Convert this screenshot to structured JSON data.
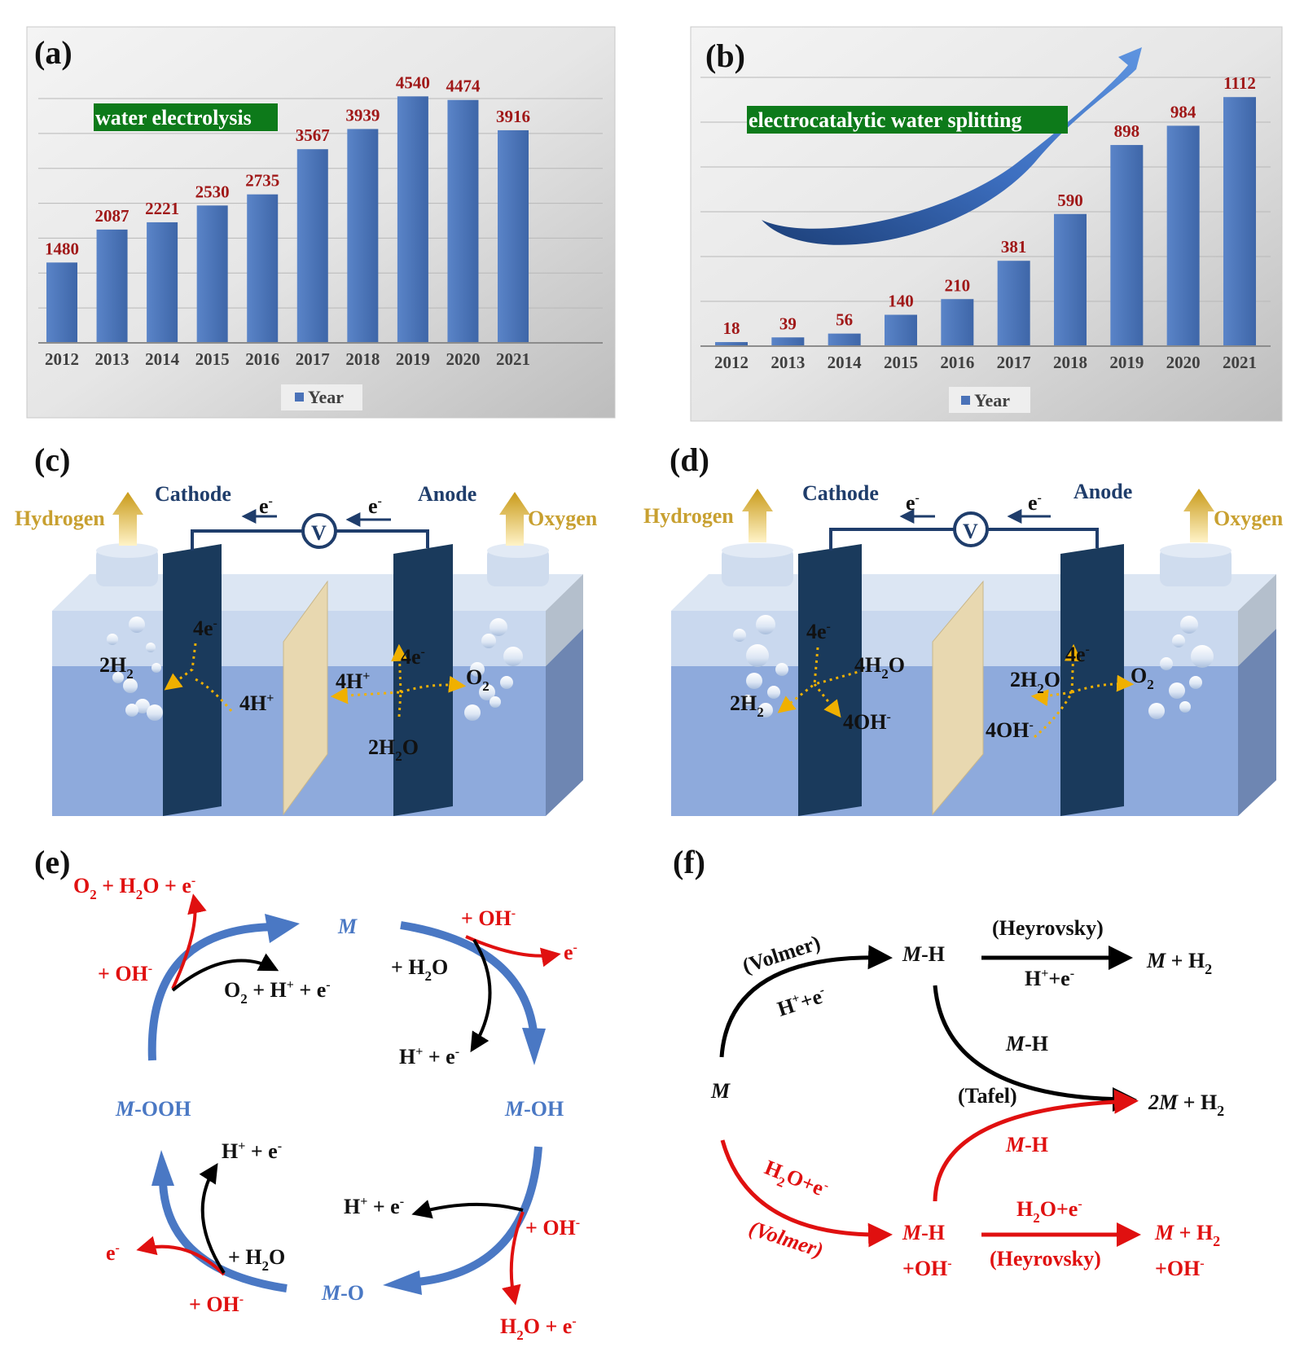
{
  "panels": {
    "a": "(a)",
    "b": "(b)",
    "c": "(c)",
    "d": "(d)",
    "e": "(e)",
    "f": "(f)"
  },
  "chart_data": [
    {
      "type": "bar",
      "title": "water electrolysis",
      "categories": [
        "2012",
        "2013",
        "2014",
        "2015",
        "2016",
        "2017",
        "2018",
        "2019",
        "2020",
        "2021"
      ],
      "series": [
        {
          "name": "Year",
          "values": [
            1480,
            2087,
            2221,
            2530,
            2735,
            3567,
            3939,
            4540,
            4474,
            3916
          ]
        }
      ],
      "ylim": [
        0,
        4500
      ],
      "grid": true,
      "legend": "bottom",
      "bar_color": "#4a72b8"
    },
    {
      "type": "bar",
      "title": "electrocatalytic water splitting",
      "categories": [
        "2012",
        "2013",
        "2014",
        "2015",
        "2016",
        "2017",
        "2018",
        "2019",
        "2020",
        "2021"
      ],
      "series": [
        {
          "name": "Year",
          "values": [
            18,
            39,
            56,
            140,
            210,
            381,
            590,
            898,
            984,
            1112
          ]
        }
      ],
      "ylim": [
        0,
        1200
      ],
      "grid": true,
      "legend": "bottom",
      "bar_color": "#4a72b8"
    }
  ],
  "cell_c": {
    "hydrogen": "Hydrogen",
    "oxygen": "Oxygen",
    "cathode": "Cathode",
    "anode": "Anode",
    "e_minus": "e",
    "voltmeter": "V",
    "e4_left": "4e",
    "h2_2": "2H",
    "h4_plus_left": "4H",
    "h4_plus_right": "4H",
    "e4_right": "4e",
    "o2": "O",
    "h2o_2": "2H",
    "o_suffix": "O"
  },
  "cell_d": {
    "hydrogen": "Hydrogen",
    "oxygen": "Oxygen",
    "cathode": "Cathode",
    "anode": "Anode",
    "e_minus": "e",
    "voltmeter": "V",
    "e4_left": "4e",
    "h2o_4": "4H",
    "h2_2": "2H",
    "oh_4_left": "4OH",
    "h2o_2": "2H",
    "e4_right": "4e",
    "o2": "O",
    "oh_4_right": "4OH",
    "o_suffix": "O"
  },
  "cycle_e": {
    "M": "M",
    "M_OH_m": "M",
    "M_OH_s": "-OH",
    "M_O_m": "M",
    "M_O_s": "-O",
    "M_OOH_m": "M",
    "M_OOH_s": "-OOH",
    "o2_h2o_e": [
      "O",
      "2",
      " + H",
      "2",
      "O + e",
      "-"
    ],
    "plus_oh": "+ OH",
    "o2_h_e": [
      "O",
      "2",
      " + H",
      "+",
      " + e",
      "-"
    ],
    "plus_h2o": "+ H",
    "h_e": [
      "H",
      "+",
      " + e",
      "-"
    ],
    "e_only": "e",
    "h2o_e": [
      "H",
      "2",
      "O + e",
      "-"
    ]
  },
  "mech_f": {
    "volmer": "(Volmer)",
    "h_e": [
      "H",
      "+",
      "+e",
      "-"
    ],
    "MH_m": "M",
    "MH_s": "-H",
    "heyrovsky": "(Heyrovsky)",
    "M_H2": [
      "M",
      " + H",
      "2"
    ],
    "tafel": "(Tafel)",
    "two_M_H2": [
      "2M",
      " + H",
      "2"
    ],
    "M": "M",
    "h2o_e": [
      "H",
      "2",
      "O+e",
      "-"
    ],
    "volmer_red": "(Volmer)",
    "MH_oh": [
      "M",
      "-H",
      "+OH",
      "-"
    ],
    "heyrovsky_red": "(Heyrovsky)",
    "M_H2_oh": [
      "M",
      " + H",
      "2",
      "+OH",
      "-"
    ]
  }
}
